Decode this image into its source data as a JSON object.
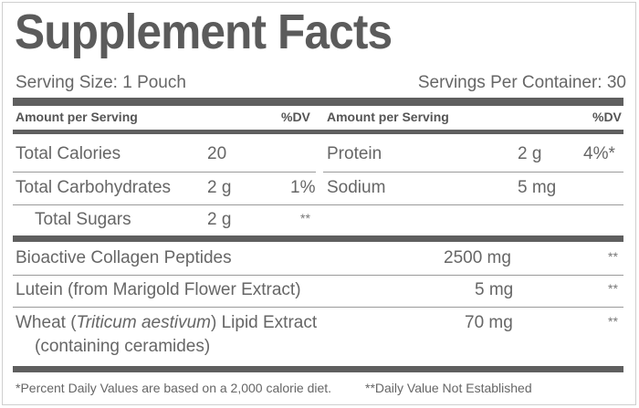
{
  "title": "Supplement Facts",
  "serving_size": "Serving Size: 1 Pouch",
  "servings_per_container": "Servings Per Container: 30",
  "headers": {
    "amount_left": "Amount per Serving",
    "dv_left": "%DV",
    "amount_right": "Amount per Serving",
    "dv_right": "%DV"
  },
  "nutrients_left": [
    {
      "name": "Total Calories",
      "amount": "20",
      "dv": ""
    },
    {
      "name": "Total Carbohydrates",
      "amount": "2 g",
      "dv": "1%"
    },
    {
      "name": "Total Sugars",
      "amount": "2 g",
      "dv": "**"
    }
  ],
  "nutrients_right": [
    {
      "name": "Protein",
      "amount": "2 g",
      "dv": "4%*"
    },
    {
      "name": "Sodium",
      "amount": "5 mg",
      "dv": ""
    }
  ],
  "ingredients": [
    {
      "name": "Bioactive Collagen Peptides",
      "amount": "2500 mg",
      "dv": "**"
    },
    {
      "name": "Lutein (from Marigold Flower Extract)",
      "amount": "5 mg",
      "dv": "**"
    },
    {
      "name_prefix": "Wheat (",
      "name_italic": "Triticum aestivum",
      "name_suffix": ") Lipid Extract",
      "name_line2": "(containing ceramides)",
      "amount": "70 mg",
      "dv": "**"
    }
  ],
  "footnote_1": "*Percent Daily Values are based on a 2,000 calorie diet.",
  "footnote_2": "**Daily Value Not Established"
}
